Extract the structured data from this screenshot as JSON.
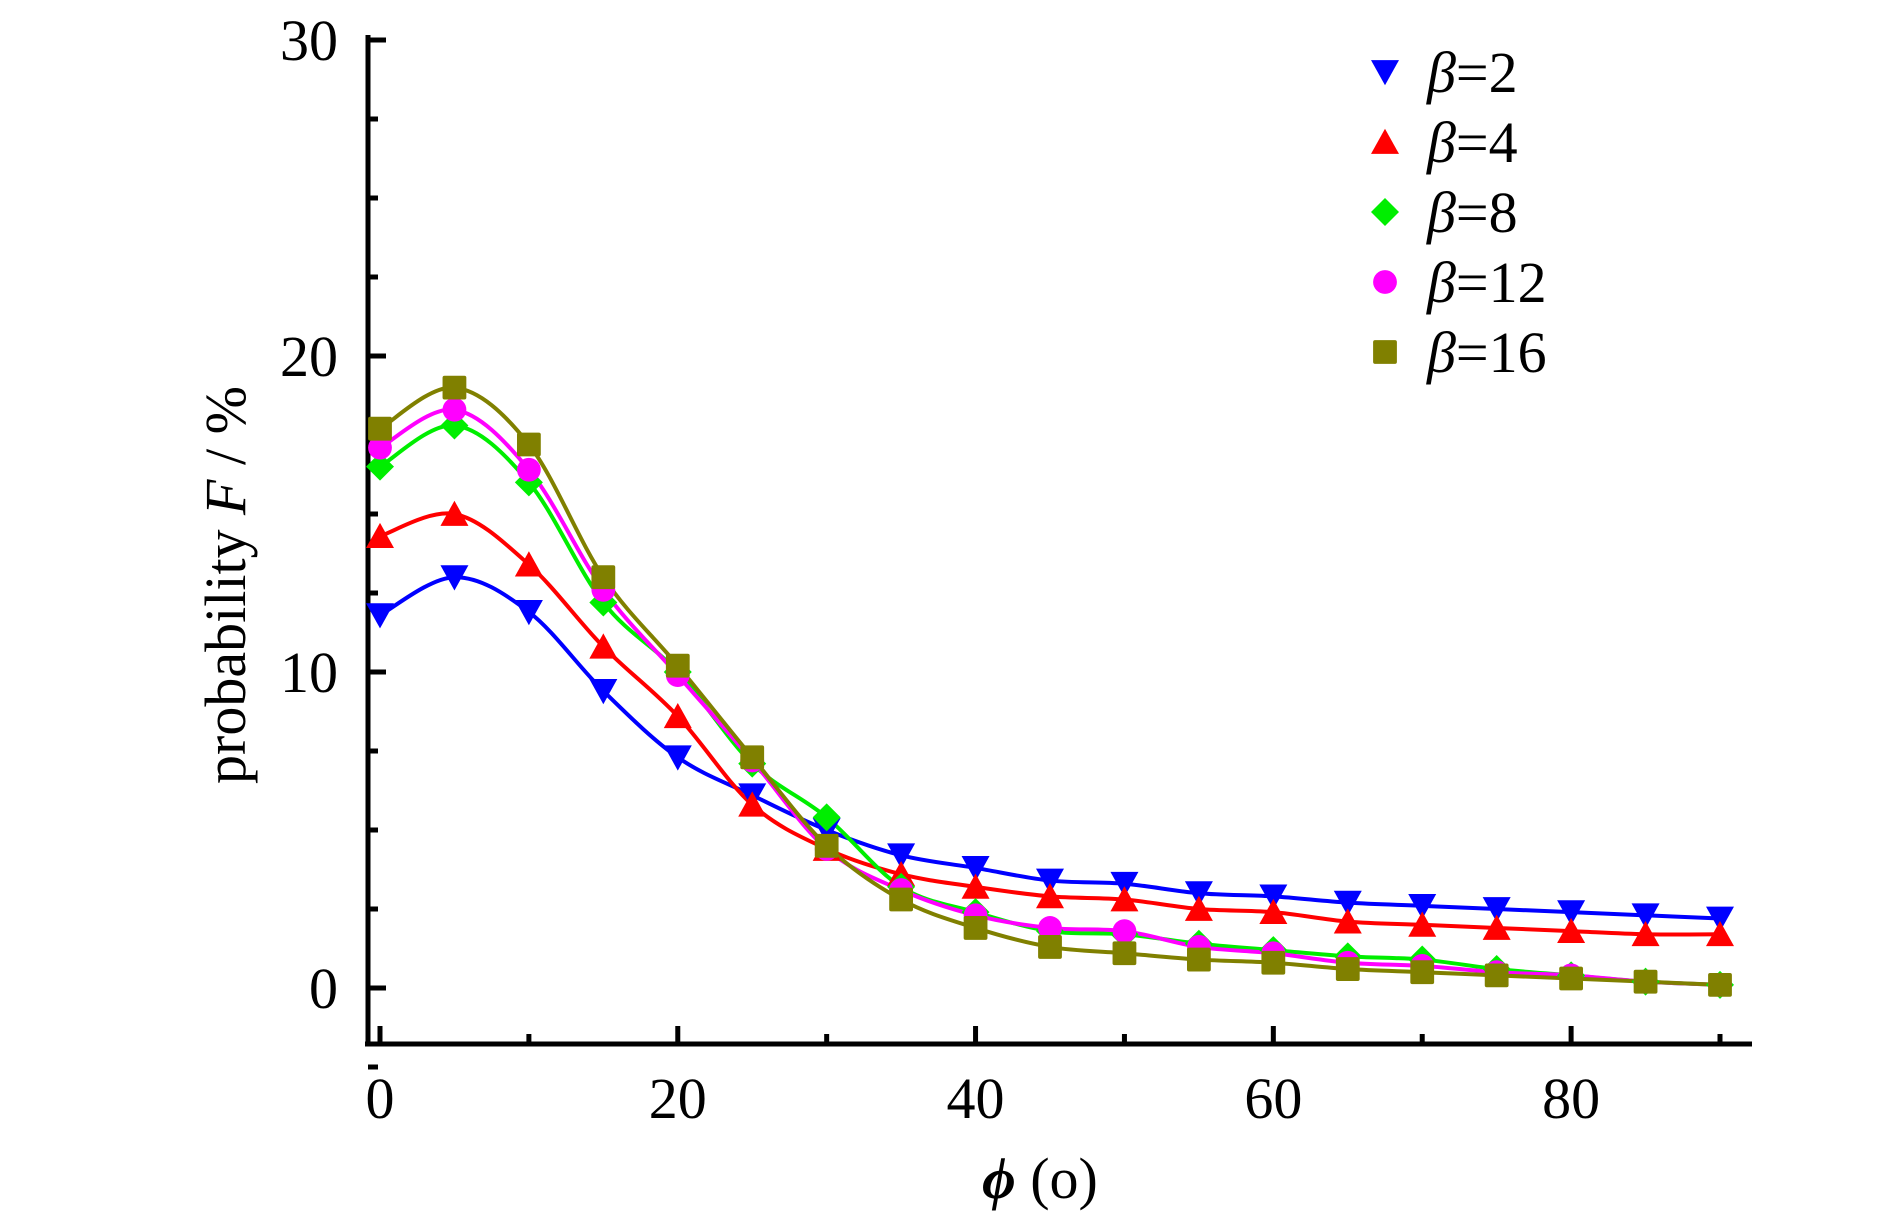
{
  "chart_data": {
    "type": "line",
    "title": "",
    "xlabel_symbol": "ϕ",
    "xlabel_unit": "(o)",
    "ylabel_prefix": "probability",
    "ylabel_symbol": "F",
    "ylabel_unit": "/ %",
    "xlim": [
      -1.5,
      92
    ],
    "ylim": [
      -2,
      30
    ],
    "x_major_ticks": [
      0,
      20,
      40,
      60,
      80
    ],
    "x_minor_ticks": [
      10,
      30,
      50,
      70,
      90
    ],
    "y_major_ticks": [
      0,
      10,
      20,
      30
    ],
    "y_minor_ticks": [
      -2.5,
      2.5,
      5,
      7.5,
      12.5,
      15,
      17.5,
      22.5,
      25,
      27.5
    ],
    "legend_position": "top-right",
    "grid": false,
    "x": [
      0,
      5,
      10,
      15,
      20,
      25,
      30,
      35,
      40,
      45,
      50,
      55,
      60,
      65,
      70,
      75,
      80,
      85,
      90
    ],
    "series": [
      {
        "name": "β=2",
        "color": "#0000ff",
        "marker": "triangle-down",
        "values": [
          11.8,
          13.0,
          11.9,
          9.4,
          7.3,
          6.1,
          5.0,
          4.2,
          3.8,
          3.4,
          3.3,
          3.0,
          2.9,
          2.7,
          2.6,
          2.5,
          2.4,
          2.3,
          2.2
        ]
      },
      {
        "name": "β=4",
        "color": "#ff0000",
        "marker": "triangle-up",
        "values": [
          14.3,
          15.0,
          13.4,
          10.8,
          8.6,
          5.8,
          4.4,
          3.6,
          3.2,
          2.9,
          2.8,
          2.5,
          2.4,
          2.1,
          2.0,
          1.9,
          1.8,
          1.7,
          1.7
        ]
      },
      {
        "name": "β=8",
        "color": "#00ee00",
        "marker": "diamond",
        "values": [
          16.5,
          17.8,
          16.0,
          12.2,
          10.0,
          7.1,
          5.4,
          3.2,
          2.4,
          1.8,
          1.7,
          1.4,
          1.2,
          1.0,
          0.9,
          0.6,
          0.4,
          0.2,
          0.1
        ]
      },
      {
        "name": "β=12",
        "color": "#ff00ff",
        "marker": "circle",
        "values": [
          17.1,
          18.3,
          16.4,
          12.6,
          9.9,
          7.2,
          4.4,
          3.1,
          2.3,
          1.9,
          1.8,
          1.3,
          1.1,
          0.8,
          0.7,
          0.5,
          0.4,
          0.2,
          0.1
        ]
      },
      {
        "name": "β=16",
        "color": "#808000",
        "marker": "square",
        "values": [
          17.7,
          19.0,
          17.2,
          13.0,
          10.2,
          7.3,
          4.5,
          2.8,
          1.9,
          1.3,
          1.1,
          0.9,
          0.8,
          0.6,
          0.5,
          0.4,
          0.3,
          0.2,
          0.1
        ]
      }
    ]
  }
}
